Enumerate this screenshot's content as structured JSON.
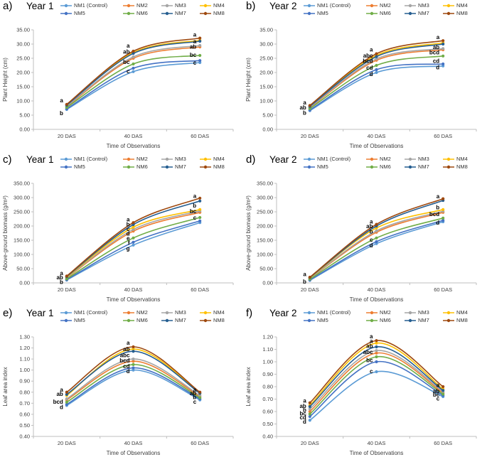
{
  "figure": {
    "background": "#ffffff"
  },
  "chart_data": [
    {
      "id": "a",
      "panel_label": "a)",
      "title": "Year 1",
      "type": "line",
      "categories": [
        "20 DAS",
        "40 DAS",
        "60 DAS"
      ],
      "xlabel": "Time of Observations",
      "ylabel": "Plant Height (cm)",
      "ylim": [
        0,
        35
      ],
      "ytick_step": 5,
      "ytick_decimals": 2,
      "grid": false,
      "legend_position": "top",
      "series": [
        {
          "name": "NM1 (Control)",
          "color": "#5B9BD5",
          "values": [
            7.0,
            20.3,
            23.5
          ]
        },
        {
          "name": "NM2",
          "color": "#ED7D31",
          "values": [
            8.0,
            25.0,
            29.0
          ]
        },
        {
          "name": "NM3",
          "color": "#A5A5A5",
          "values": [
            8.2,
            25.5,
            29.5
          ]
        },
        {
          "name": "NM4",
          "color": "#FFC000",
          "values": [
            8.6,
            27.0,
            31.3
          ]
        },
        {
          "name": "NM5",
          "color": "#4472C4",
          "values": [
            7.2,
            21.5,
            24.2
          ]
        },
        {
          "name": "NM6",
          "color": "#70AD47",
          "values": [
            7.7,
            23.0,
            26.0
          ]
        },
        {
          "name": "NM7",
          "color": "#255E91",
          "values": [
            8.5,
            26.7,
            31.0
          ]
        },
        {
          "name": "NM8",
          "color": "#9E480E",
          "values": [
            8.8,
            27.5,
            32.1
          ]
        }
      ],
      "annotations": [
        {
          "x": 0,
          "y": 10.2,
          "text": "a"
        },
        {
          "x": 0,
          "y": 5.7,
          "text": "b"
        },
        {
          "x": 1,
          "y": 29.4,
          "text": "a"
        },
        {
          "x": 1,
          "y": 27.3,
          "text": "ab"
        },
        {
          "x": 1,
          "y": 23.7,
          "text": "bc"
        },
        {
          "x": 1,
          "y": 20.5,
          "text": "c"
        },
        {
          "x": 2,
          "y": 33.3,
          "text": "a"
        },
        {
          "x": 2,
          "y": 30.9,
          "text": "a"
        },
        {
          "x": 2,
          "y": 29.1,
          "text": "ab"
        },
        {
          "x": 2,
          "y": 26.2,
          "text": "bc"
        },
        {
          "x": 2,
          "y": 23.5,
          "text": "c"
        }
      ]
    },
    {
      "id": "b",
      "panel_label": "b)",
      "title": "Year 2",
      "type": "line",
      "categories": [
        "20 DAS",
        "40 DAS",
        "60 DAS"
      ],
      "xlabel": "Time of Observations",
      "ylabel": "Plant Height (cm)",
      "ylim": [
        0,
        35
      ],
      "ytick_step": 5,
      "ytick_decimals": 2,
      "grid": false,
      "legend_position": "top",
      "series": [
        {
          "name": "NM1 (Control)",
          "color": "#5B9BD5",
          "values": [
            6.6,
            20.0,
            22.3
          ]
        },
        {
          "name": "NM2",
          "color": "#ED7D31",
          "values": [
            7.6,
            24.3,
            28.0
          ]
        },
        {
          "name": "NM3",
          "color": "#A5A5A5",
          "values": [
            7.8,
            24.8,
            28.4
          ]
        },
        {
          "name": "NM4",
          "color": "#FFC000",
          "values": [
            8.2,
            26.0,
            30.4
          ]
        },
        {
          "name": "NM5",
          "color": "#4472C4",
          "values": [
            6.8,
            21.0,
            23.0
          ]
        },
        {
          "name": "NM6",
          "color": "#70AD47",
          "values": [
            7.3,
            22.5,
            25.8
          ]
        },
        {
          "name": "NM7",
          "color": "#255E91",
          "values": [
            8.1,
            25.6,
            30.0
          ]
        },
        {
          "name": "NM8",
          "color": "#9E480E",
          "values": [
            8.4,
            26.6,
            31.2
          ]
        }
      ],
      "annotations": [
        {
          "x": 0,
          "y": 9.4,
          "text": "a"
        },
        {
          "x": 0,
          "y": 7.7,
          "text": "ab"
        },
        {
          "x": 0,
          "y": 5.8,
          "text": "b"
        },
        {
          "x": 1,
          "y": 28.1,
          "text": "a"
        },
        {
          "x": 1,
          "y": 25.9,
          "text": "abc"
        },
        {
          "x": 1,
          "y": 24.1,
          "text": "bcd"
        },
        {
          "x": 1,
          "y": 21.7,
          "text": "cd"
        },
        {
          "x": 1,
          "y": 19.5,
          "text": "d"
        },
        {
          "x": 2,
          "y": 32.4,
          "text": "a"
        },
        {
          "x": 2,
          "y": 29.0,
          "text": "ab"
        },
        {
          "x": 2,
          "y": 27.1,
          "text": "bcd"
        },
        {
          "x": 2,
          "y": 24.1,
          "text": "cd"
        },
        {
          "x": 2,
          "y": 21.8,
          "text": "d"
        }
      ]
    },
    {
      "id": "c",
      "panel_label": "c)",
      "title": "Year 1",
      "type": "line",
      "categories": [
        "20 DAS",
        "40 DAS",
        "60 DAS"
      ],
      "xlabel": "Time of Observations",
      "ylabel": "Above-ground biomass (g/m²)",
      "ylim": [
        0,
        350
      ],
      "ytick_step": 50,
      "ytick_decimals": 2,
      "grid": false,
      "legend_position": "top",
      "series": [
        {
          "name": "NM1 (Control)",
          "color": "#5B9BD5",
          "values": [
            10,
            133,
            212
          ]
        },
        {
          "name": "NM2",
          "color": "#ED7D31",
          "values": [
            17,
            182,
            248
          ]
        },
        {
          "name": "NM3",
          "color": "#A5A5A5",
          "values": [
            18,
            188,
            253
          ]
        },
        {
          "name": "NM4",
          "color": "#FFC000",
          "values": [
            20,
            196,
            258
          ]
        },
        {
          "name": "NM5",
          "color": "#4472C4",
          "values": [
            11,
            143,
            218
          ]
        },
        {
          "name": "NM6",
          "color": "#70AD47",
          "values": [
            14,
            158,
            230
          ]
        },
        {
          "name": "NM7",
          "color": "#255E91",
          "values": [
            22,
            205,
            288
          ]
        },
        {
          "name": "NM8",
          "color": "#9E480E",
          "values": [
            24,
            212,
            298
          ]
        }
      ],
      "annotations": [
        {
          "x": 0,
          "y": 34,
          "text": "a"
        },
        {
          "x": 0,
          "y": 20,
          "text": "ab"
        },
        {
          "x": 0,
          "y": 3,
          "text": "b"
        },
        {
          "x": 1,
          "y": 223,
          "text": "a"
        },
        {
          "x": 1,
          "y": 206,
          "text": "b"
        },
        {
          "x": 1,
          "y": 190,
          "text": "c"
        },
        {
          "x": 1,
          "y": 173,
          "text": "d"
        },
        {
          "x": 1,
          "y": 157,
          "text": "e"
        },
        {
          "x": 1,
          "y": 141,
          "text": "f"
        },
        {
          "x": 1,
          "y": 121,
          "text": "g"
        },
        {
          "x": 2,
          "y": 306,
          "text": "a"
        },
        {
          "x": 2,
          "y": 272,
          "text": "b"
        },
        {
          "x": 2,
          "y": 252,
          "text": "bc"
        },
        {
          "x": 2,
          "y": 229,
          "text": "c"
        }
      ]
    },
    {
      "id": "d",
      "panel_label": "d)",
      "title": "Year 2",
      "type": "line",
      "categories": [
        "20 DAS",
        "40 DAS",
        "60 DAS"
      ],
      "xlabel": "Time of Observations",
      "ylabel": "Above-ground biomass (g/m²)",
      "ylim": [
        0,
        350
      ],
      "ytick_step": 50,
      "ytick_decimals": 2,
      "grid": false,
      "legend_position": "top",
      "series": [
        {
          "name": "NM1 (Control)",
          "color": "#5B9BD5",
          "values": [
            9,
            138,
            215
          ]
        },
        {
          "name": "NM2",
          "color": "#ED7D31",
          "values": [
            15,
            178,
            248
          ]
        },
        {
          "name": "NM3",
          "color": "#A5A5A5",
          "values": [
            16,
            183,
            252
          ]
        },
        {
          "name": "NM4",
          "color": "#FFC000",
          "values": [
            18,
            193,
            258
          ]
        },
        {
          "name": "NM5",
          "color": "#4472C4",
          "values": [
            10,
            145,
            220
          ]
        },
        {
          "name": "NM6",
          "color": "#70AD47",
          "values": [
            13,
            158,
            228
          ]
        },
        {
          "name": "NM7",
          "color": "#255E91",
          "values": [
            19,
            200,
            290
          ]
        },
        {
          "name": "NM8",
          "color": "#9E480E",
          "values": [
            20,
            206,
            296
          ]
        }
      ],
      "annotations": [
        {
          "x": 0,
          "y": 31,
          "text": "a"
        },
        {
          "x": 0,
          "y": 4,
          "text": "b"
        },
        {
          "x": 1,
          "y": 216,
          "text": "a"
        },
        {
          "x": 1,
          "y": 199,
          "text": "ab"
        },
        {
          "x": 1,
          "y": 181,
          "text": "b"
        },
        {
          "x": 1,
          "y": 152,
          "text": "c"
        },
        {
          "x": 1,
          "y": 132,
          "text": "d"
        },
        {
          "x": 2,
          "y": 305,
          "text": "a"
        },
        {
          "x": 2,
          "y": 266,
          "text": "b"
        },
        {
          "x": 2,
          "y": 242,
          "text": "bcd"
        },
        {
          "x": 2,
          "y": 212,
          "text": "d"
        }
      ]
    },
    {
      "id": "e",
      "panel_label": "e)",
      "title": "Year 1",
      "type": "line",
      "categories": [
        "20 DAS",
        "40 DAS",
        "60 DAS"
      ],
      "xlabel": "Time of Observations",
      "ylabel": "Leaf area index",
      "ylim": [
        0.4,
        1.3
      ],
      "ytick_step": 0.1,
      "ytick_decimals": 2,
      "grid": false,
      "legend_position": "top",
      "series": [
        {
          "name": "NM1 (Control)",
          "color": "#5B9BD5",
          "values": [
            0.68,
            1.0,
            0.73
          ]
        },
        {
          "name": "NM2",
          "color": "#ED7D31",
          "values": [
            0.73,
            1.08,
            0.76
          ]
        },
        {
          "name": "NM3",
          "color": "#A5A5A5",
          "values": [
            0.74,
            1.1,
            0.77
          ]
        },
        {
          "name": "NM4",
          "color": "#FFC000",
          "values": [
            0.77,
            1.19,
            0.79
          ]
        },
        {
          "name": "NM5",
          "color": "#4472C4",
          "values": [
            0.69,
            1.02,
            0.74
          ]
        },
        {
          "name": "NM6",
          "color": "#70AD47",
          "values": [
            0.71,
            1.05,
            0.75
          ]
        },
        {
          "name": "NM7",
          "color": "#255E91",
          "values": [
            0.78,
            1.17,
            0.79
          ]
        },
        {
          "name": "NM8",
          "color": "#9E480E",
          "values": [
            0.8,
            1.21,
            0.8
          ]
        }
      ],
      "annotations": [
        {
          "x": 0,
          "y": 0.822,
          "text": "a"
        },
        {
          "x": 0,
          "y": 0.786,
          "text": "ab"
        },
        {
          "x": 0,
          "y": 0.714,
          "text": "bcd"
        },
        {
          "x": 0,
          "y": 0.664,
          "text": "d"
        },
        {
          "x": 1,
          "y": 1.246,
          "text": "a"
        },
        {
          "x": 1,
          "y": 1.19,
          "text": "ab"
        },
        {
          "x": 1,
          "y": 1.136,
          "text": "abc"
        },
        {
          "x": 1,
          "y": 1.086,
          "text": "bcd"
        },
        {
          "x": 1,
          "y": 1.036,
          "text": "cd"
        },
        {
          "x": 1,
          "y": 0.99,
          "text": "d"
        },
        {
          "x": 2,
          "y": 0.824,
          "text": "a"
        },
        {
          "x": 2,
          "y": 0.79,
          "text": "ab"
        },
        {
          "x": 2,
          "y": 0.757,
          "text": "b"
        },
        {
          "x": 2,
          "y": 0.714,
          "text": "c"
        }
      ]
    },
    {
      "id": "f",
      "panel_label": "f)",
      "title": "Year 2",
      "type": "line",
      "categories": [
        "20 DAS",
        "40 DAS",
        "60 DAS"
      ],
      "xlabel": "Time of Observations",
      "ylabel": "Leaf area index",
      "ylim": [
        0.4,
        1.2
      ],
      "ytick_step": 0.1,
      "ytick_decimals": 2,
      "grid": false,
      "legend_position": "top",
      "series": [
        {
          "name": "NM1 (Control)",
          "color": "#5B9BD5",
          "values": [
            0.53,
            0.92,
            0.72
          ]
        },
        {
          "name": "NM2",
          "color": "#ED7D31",
          "values": [
            0.6,
            1.07,
            0.75
          ]
        },
        {
          "name": "NM3",
          "color": "#A5A5A5",
          "values": [
            0.62,
            1.09,
            0.76
          ]
        },
        {
          "name": "NM4",
          "color": "#FFC000",
          "values": [
            0.65,
            1.15,
            0.78
          ]
        },
        {
          "name": "NM5",
          "color": "#4472C4",
          "values": [
            0.56,
            1.0,
            0.73
          ]
        },
        {
          "name": "NM6",
          "color": "#70AD47",
          "values": [
            0.58,
            1.04,
            0.74
          ]
        },
        {
          "name": "NM7",
          "color": "#255E91",
          "values": [
            0.64,
            1.12,
            0.77
          ]
        },
        {
          "name": "NM8",
          "color": "#9E480E",
          "values": [
            0.67,
            1.17,
            0.8
          ]
        }
      ],
      "annotations": [
        {
          "x": 0,
          "y": 0.687,
          "text": "a"
        },
        {
          "x": 0,
          "y": 0.646,
          "text": "ab"
        },
        {
          "x": 0,
          "y": 0.614,
          "text": "b"
        },
        {
          "x": 0,
          "y": 0.585,
          "text": "bc"
        },
        {
          "x": 0,
          "y": 0.553,
          "text": "cd"
        },
        {
          "x": 0,
          "y": 0.518,
          "text": "d"
        },
        {
          "x": 1,
          "y": 1.205,
          "text": "a"
        },
        {
          "x": 1,
          "y": 1.168,
          "text": "a"
        },
        {
          "x": 1,
          "y": 1.128,
          "text": "ab"
        },
        {
          "x": 1,
          "y": 1.078,
          "text": "abc"
        },
        {
          "x": 1,
          "y": 1.012,
          "text": "bc"
        },
        {
          "x": 1,
          "y": 0.925,
          "text": "c"
        },
        {
          "x": 2,
          "y": 0.813,
          "text": "a"
        },
        {
          "x": 2,
          "y": 0.766,
          "text": "ab"
        },
        {
          "x": 2,
          "y": 0.737,
          "text": "bc"
        },
        {
          "x": 2,
          "y": 0.706,
          "text": "c"
        }
      ]
    }
  ]
}
